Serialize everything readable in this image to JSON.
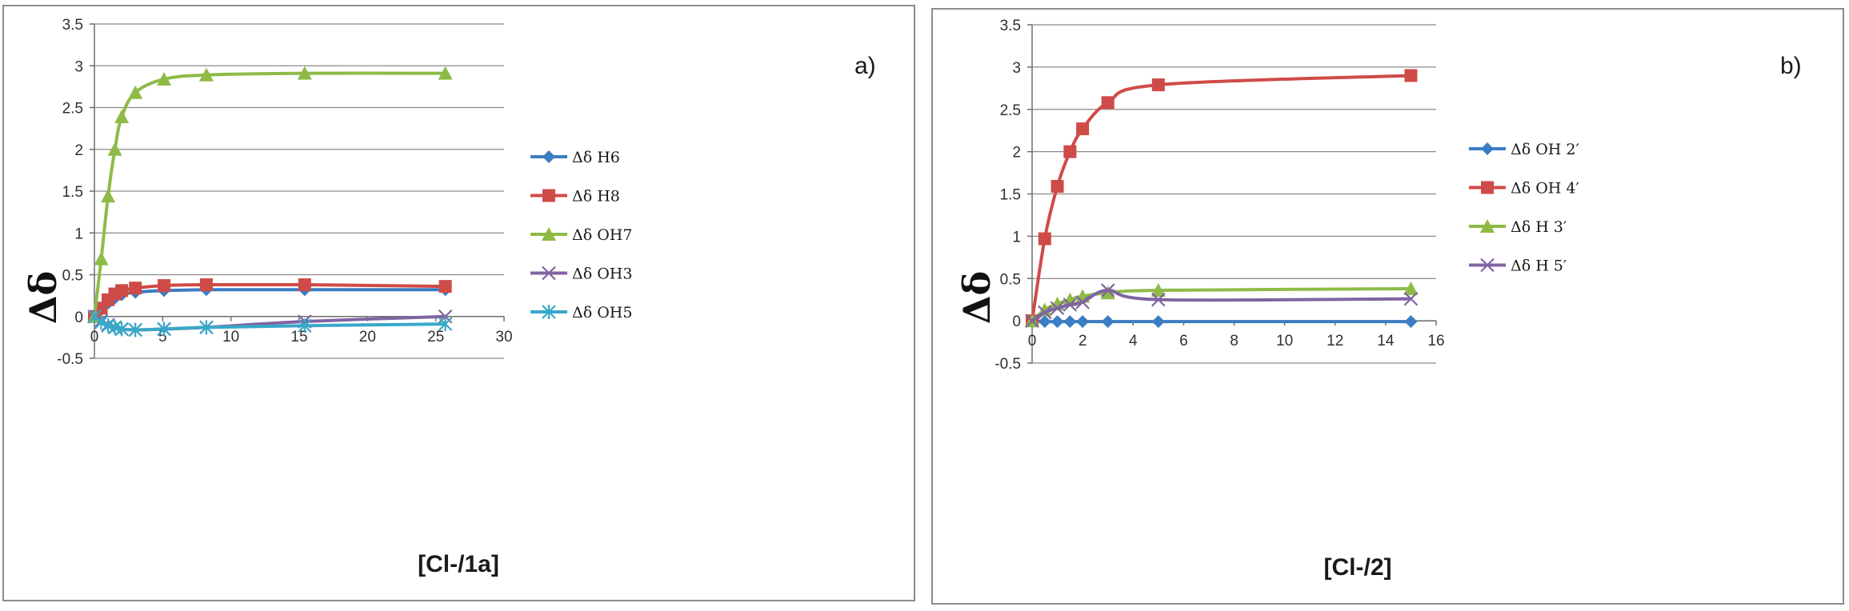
{
  "chart_data": [
    {
      "type": "line",
      "panel_label": "a)",
      "xlabel": "[Cl-/1a]",
      "ylabel": "Δδ",
      "xlim": [
        0,
        30
      ],
      "ylim": [
        -0.5,
        3.5
      ],
      "x_ticks": [
        0,
        5,
        10,
        15,
        20,
        25,
        30
      ],
      "y_ticks": [
        -0.5,
        0,
        0.5,
        1,
        1.5,
        2,
        2.5,
        3,
        3.5
      ],
      "x_tick_labels": [
        "0",
        "5",
        "10",
        "15",
        "20",
        "25",
        "30"
      ],
      "y_tick_labels": [
        "-0.5",
        "0",
        "0.5",
        "1",
        "1.5",
        "2",
        "2.5",
        "3",
        "3.5"
      ],
      "grid": "horizontal",
      "legend_position": "right",
      "series": [
        {
          "name": "Δδ H6",
          "color": "#3b7dc4",
          "marker": "diamond",
          "x": [
            0,
            0.5,
            1,
            1.5,
            2,
            3,
            5.1,
            8.2,
            15.4,
            25.7
          ],
          "y": [
            0,
            0.08,
            0.16,
            0.22,
            0.26,
            0.29,
            0.31,
            0.32,
            0.32,
            0.32
          ]
        },
        {
          "name": "Δδ H8",
          "color": "#cf4b47",
          "marker": "square",
          "x": [
            0,
            0.5,
            1,
            1.5,
            2,
            3,
            5.1,
            8.2,
            15.4,
            25.7
          ],
          "y": [
            0,
            0.1,
            0.2,
            0.27,
            0.31,
            0.34,
            0.37,
            0.38,
            0.38,
            0.36
          ]
        },
        {
          "name": "Δδ OH7",
          "color": "#8ebb47",
          "marker": "triangle",
          "x": [
            0,
            0.5,
            1,
            1.5,
            2,
            3,
            5.1,
            8.2,
            15.4,
            25.7
          ],
          "y": [
            0,
            0.69,
            1.44,
            2.0,
            2.39,
            2.68,
            2.84,
            2.89,
            2.91,
            2.91
          ]
        },
        {
          "name": "Δδ OH3",
          "color": "#8064a2",
          "marker": "x",
          "x": [
            0,
            0.5,
            1,
            1.5,
            2,
            3,
            5.1,
            8.2,
            15.4,
            25.7
          ],
          "y": [
            0,
            -0.05,
            -0.1,
            -0.13,
            -0.15,
            -0.16,
            -0.15,
            -0.13,
            -0.06,
            0
          ]
        },
        {
          "name": "Δδ OH5",
          "color": "#38a8c8",
          "marker": "asterisk",
          "x": [
            0,
            0.5,
            1,
            1.5,
            2,
            3,
            5.1,
            8.2,
            15.4,
            25.7
          ],
          "y": [
            0,
            -0.07,
            -0.11,
            -0.13,
            -0.15,
            -0.16,
            -0.15,
            -0.13,
            -0.11,
            -0.09
          ]
        }
      ]
    },
    {
      "type": "line",
      "panel_label": "b)",
      "xlabel": "[Cl-/2]",
      "ylabel": "Δδ",
      "xlim": [
        0,
        16
      ],
      "ylim": [
        -0.5,
        3.5
      ],
      "x_ticks": [
        0,
        2,
        4,
        6,
        8,
        10,
        12,
        14,
        16
      ],
      "y_ticks": [
        -0.5,
        0,
        0.5,
        1,
        1.5,
        2,
        2.5,
        3,
        3.5
      ],
      "x_tick_labels": [
        "0",
        "2",
        "4",
        "6",
        "8",
        "10",
        "12",
        "14",
        "16"
      ],
      "y_tick_labels": [
        "-0.5",
        "0",
        "0.5",
        "1",
        "1.5",
        "2",
        "2.5",
        "3",
        "3.5"
      ],
      "grid": "horizontal",
      "legend_position": "right",
      "series": [
        {
          "name": "Δδ OH 2′",
          "color": "#3b7dc4",
          "marker": "diamond",
          "x": [
            0,
            0.5,
            1,
            1.5,
            2,
            3,
            5,
            15
          ],
          "y": [
            0,
            -0.01,
            -0.01,
            -0.01,
            -0.01,
            -0.01,
            -0.01,
            -0.01
          ]
        },
        {
          "name": "Δδ OH 4′",
          "color": "#cf4b47",
          "marker": "square",
          "x": [
            0,
            0.5,
            1,
            1.5,
            2,
            3,
            5,
            15
          ],
          "y": [
            0,
            0.97,
            1.59,
            2.0,
            2.27,
            2.58,
            2.79,
            2.9
          ]
        },
        {
          "name": "Δδ H 3′",
          "color": "#8ebb47",
          "marker": "triangle",
          "x": [
            0,
            0.5,
            1,
            1.5,
            2,
            3,
            5,
            15
          ],
          "y": [
            0,
            0.13,
            0.2,
            0.25,
            0.29,
            0.33,
            0.36,
            0.38
          ]
        },
        {
          "name": "Δδ H 5′",
          "color": "#8064a2",
          "marker": "x",
          "x": [
            0,
            0.5,
            1,
            1.5,
            2,
            3,
            5,
            15
          ],
          "y": [
            0,
            0.1,
            0.15,
            0.19,
            0.22,
            0.36,
            0.25,
            0.26
          ]
        }
      ]
    }
  ]
}
